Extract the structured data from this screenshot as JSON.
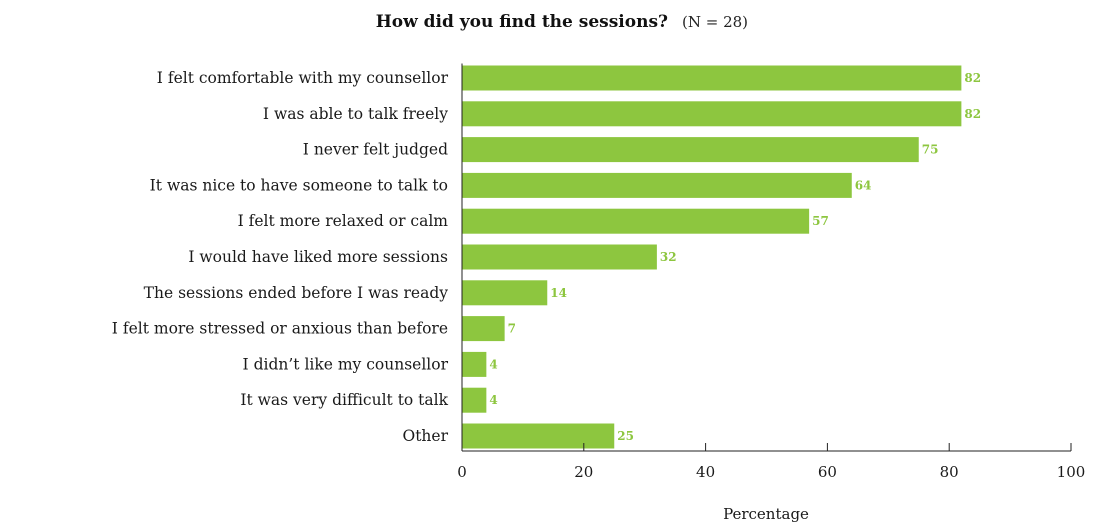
{
  "chart_data": {
    "type": "bar",
    "orientation": "horizontal",
    "title": "How did you find the sessions?",
    "subtitle": "(N = 28)",
    "xlabel": "Percentage",
    "ylabel": "",
    "xlim": [
      0,
      100
    ],
    "x_ticks": [
      0,
      20,
      40,
      60,
      80,
      100
    ],
    "grid": false,
    "legend": "none",
    "bar_color": "#8dc63f",
    "value_label_color": "#8dc63f",
    "categories": [
      "I felt comfortable with my counsellor",
      "I was able to talk freely",
      "I never felt judged",
      "It was nice to have someone to talk to",
      "I felt more relaxed or calm",
      "I would have liked more sessions",
      "The sessions ended before I was ready",
      "I felt more stressed or anxious than before",
      "I didn’t like my counsellor",
      "It was very difficult to talk",
      "Other"
    ],
    "values": [
      82,
      82,
      75,
      64,
      57,
      32,
      14,
      7,
      4,
      4,
      25
    ]
  }
}
